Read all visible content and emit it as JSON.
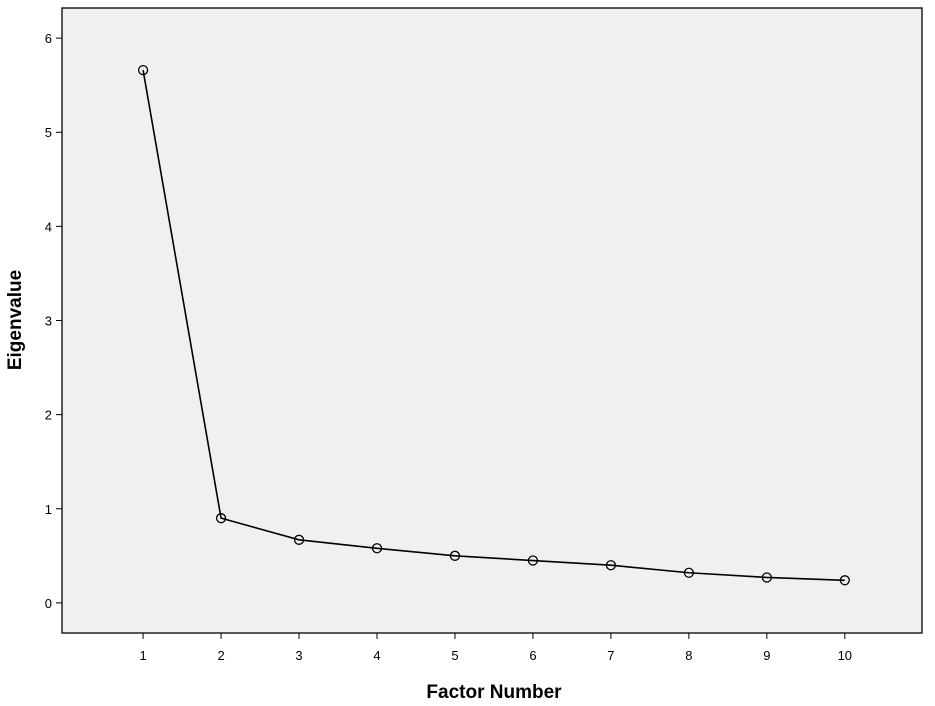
{
  "chart_data": {
    "type": "line",
    "x_label": "Factor Number",
    "y_label": "Eigenvalue",
    "x": [
      1,
      2,
      3,
      4,
      5,
      6,
      7,
      8,
      9,
      10
    ],
    "series": [
      {
        "color": "#000000",
        "values": [
          5.66,
          0.9,
          0.67,
          0.58,
          0.5,
          0.45,
          0.4,
          0.32,
          0.27,
          0.24
        ]
      }
    ],
    "xlim": [
      -0.04,
      10.99
    ],
    "ylim": [
      -0.32,
      6.32
    ],
    "xticks": [
      1,
      2,
      3,
      4,
      5,
      6,
      7,
      8,
      9,
      10
    ],
    "yticks": [
      0,
      1,
      2,
      3,
      4,
      5,
      6
    ],
    "grid": false,
    "background": "#f0f0f0",
    "markers": true
  }
}
